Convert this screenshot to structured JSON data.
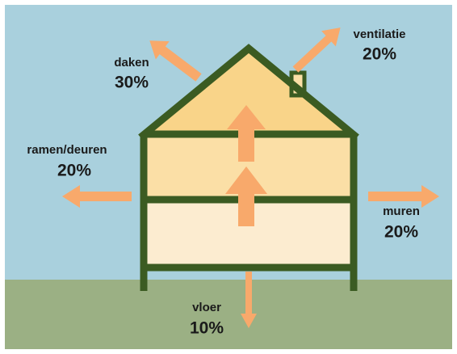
{
  "losses": [
    {
      "label": "daken",
      "value": "30%"
    },
    {
      "label": "ventilatie",
      "value": "20%"
    },
    {
      "label": "ramen/deuren",
      "value": "20%"
    },
    {
      "label": "muren",
      "value": "20%"
    },
    {
      "label": "vloer",
      "value": "10%"
    }
  ]
}
